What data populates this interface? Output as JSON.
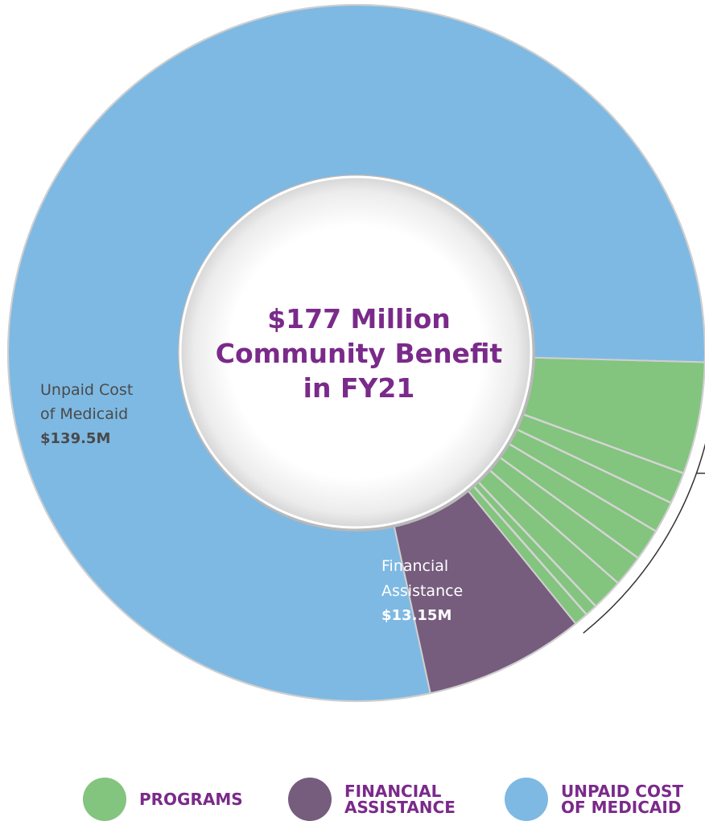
{
  "chart_data": {
    "type": "pie",
    "title": "$177 Million\nCommunity Benefit\nin FY21",
    "categories": [
      "Unpaid Cost of Medicaid",
      "Financial Assistance",
      "Programs"
    ],
    "values": [
      139.5,
      13.15,
      24.35
    ],
    "program_subslices": [
      9.2,
      2.6,
      2.6,
      2.6,
      2.6,
      2.6,
      1.0,
      1.15
    ],
    "slice_labels": [
      {
        "line1": "Unpaid Cost",
        "line2": "of Medicaid",
        "value": "$139.5M"
      },
      {
        "line1": "Financial",
        "line2": "Assistance",
        "value": "$13.15M"
      }
    ],
    "total": 177,
    "unit": "M",
    "colors": {
      "unpaid_cost_of_medicaid": "#7eb9e3",
      "financial_assistance": "#765c7d",
      "programs": "#83c47e",
      "center_text": "#7a2a8a"
    }
  },
  "legend": [
    {
      "label": "PROGRAMS",
      "color": "#83c47e"
    },
    {
      "label": "FINANCIAL\nASSISTANCE",
      "color": "#765c7d"
    },
    {
      "label": "UNPAID COST\nOF MEDICAID",
      "color": "#7eb9e3"
    }
  ]
}
